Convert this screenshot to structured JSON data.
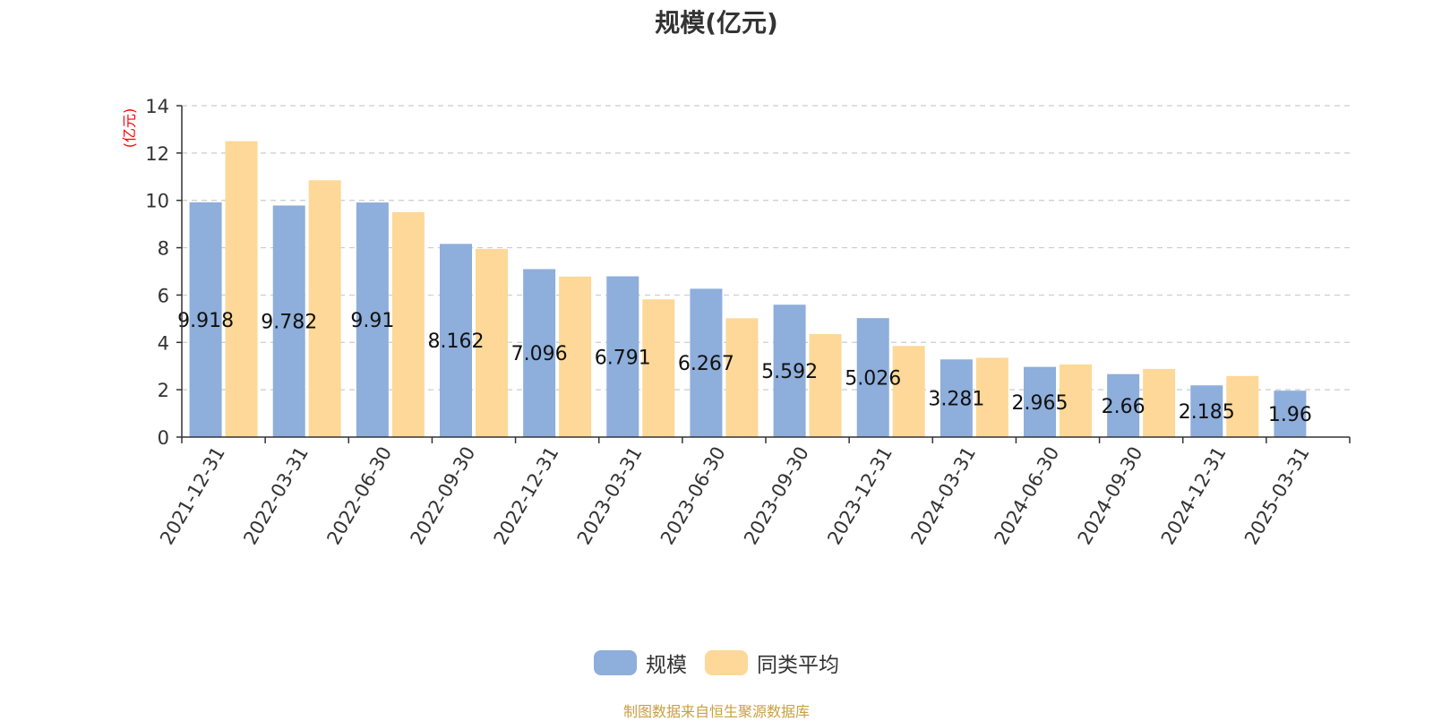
{
  "chart_data": {
    "type": "bar",
    "title": "规模(亿元)",
    "ylabel": "(亿元)",
    "xlabel": "",
    "ylim": [
      0,
      14
    ],
    "yticks": [
      0,
      2,
      4,
      6,
      8,
      10,
      12,
      14
    ],
    "grid": true,
    "legend_position": "bottom",
    "categories": [
      "2021-12-31",
      "2022-03-31",
      "2022-06-30",
      "2022-09-30",
      "2022-12-31",
      "2023-03-31",
      "2023-06-30",
      "2023-09-30",
      "2023-12-31",
      "2024-03-31",
      "2024-06-30",
      "2024-09-30",
      "2024-12-31",
      "2025-03-31"
    ],
    "series": [
      {
        "name": "规模",
        "color": "#8eaedb",
        "values": [
          9.918,
          9.782,
          9.91,
          8.162,
          7.096,
          6.791,
          6.267,
          5.592,
          5.026,
          3.281,
          2.965,
          2.66,
          2.185,
          1.96
        ],
        "data_labels": [
          "9.918",
          "9.782",
          "9.91",
          "8.162",
          "7.096",
          "6.791",
          "6.267",
          "5.592",
          "5.026",
          "3.281",
          "2.965",
          "2.66",
          "2.185",
          "1.96"
        ]
      },
      {
        "name": "同类平均",
        "color": "#fdd898",
        "values": [
          12.5,
          10.85,
          9.5,
          7.95,
          6.78,
          5.82,
          5.02,
          4.35,
          3.85,
          3.35,
          3.07,
          2.88,
          2.58,
          null
        ]
      }
    ],
    "source_note": "制图数据来自恒生聚源数据库",
    "axis_color": "#333333",
    "ylabel_color": "#ff0000",
    "grid_color": "#cccccc"
  }
}
